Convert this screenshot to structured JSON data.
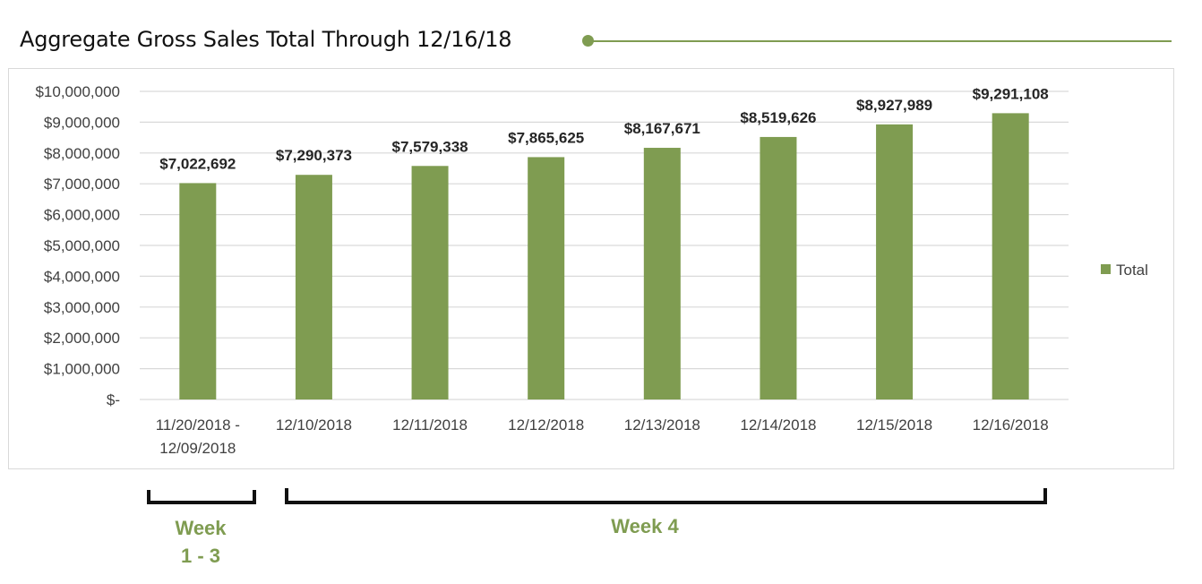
{
  "title": "Aggregate Gross Sales Total Through 12/16/18",
  "colors": {
    "bar": "#7f9c51",
    "accent": "#7f9c51",
    "gridline": "#d9d9d9",
    "text": "#404040",
    "label": "#262626"
  },
  "chart_data": {
    "type": "bar",
    "title": "Aggregate Gross Sales Total Through 12/16/18",
    "xlabel": "",
    "ylabel": "",
    "categories": [
      [
        "11/20/2018 -",
        "12/09/2018"
      ],
      [
        "12/10/2018"
      ],
      [
        "12/11/2018"
      ],
      [
        "12/12/2018"
      ],
      [
        "12/13/2018"
      ],
      [
        "12/14/2018"
      ],
      [
        "12/15/2018"
      ],
      [
        "12/16/2018"
      ]
    ],
    "series": [
      {
        "name": "Total",
        "values": [
          7022692,
          7290373,
          7579338,
          7865625,
          8167671,
          8519626,
          8927989,
          9291108
        ]
      }
    ],
    "data_labels": [
      "$7,022,692",
      "$7,290,373",
      "$7,579,338",
      "$7,865,625",
      "$8,167,671",
      "$8,519,626",
      "$8,927,989",
      "$9,291,108"
    ],
    "ylim": [
      0,
      10000000
    ],
    "yticks": [
      0,
      1000000,
      2000000,
      3000000,
      4000000,
      5000000,
      6000000,
      7000000,
      8000000,
      9000000,
      10000000
    ],
    "ytick_labels": [
      "$-",
      "$1,000,000",
      "$2,000,000",
      "$3,000,000",
      "$4,000,000",
      "$5,000,000",
      "$6,000,000",
      "$7,000,000",
      "$8,000,000",
      "$9,000,000",
      "$10,000,000"
    ],
    "grid": true,
    "legend": {
      "position": "right",
      "entries": [
        "Total"
      ]
    }
  },
  "annotations": {
    "week_1_3": [
      "Week",
      "1 - 3"
    ],
    "week_4": "Week 4"
  }
}
